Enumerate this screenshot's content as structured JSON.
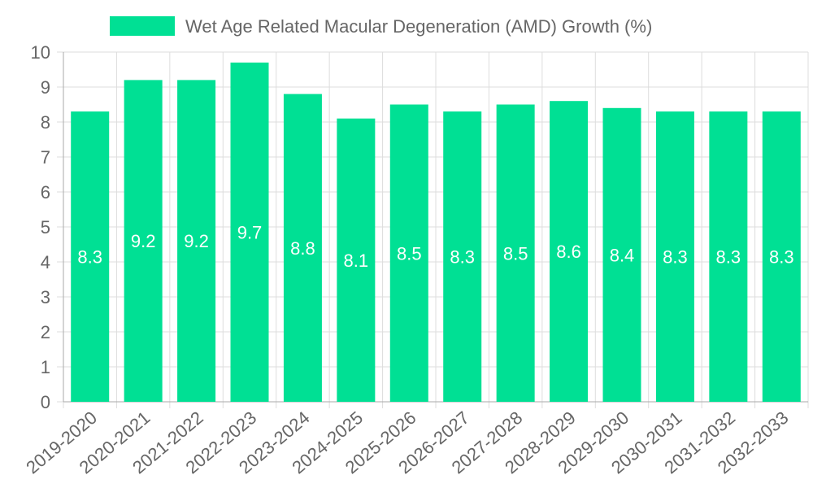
{
  "chart_data": {
    "type": "bar",
    "categories": [
      "2019-2020",
      "2020-2021",
      "2021-2022",
      "2022-2023",
      "2023-2024",
      "2024-2025",
      "2025-2026",
      "2026-2027",
      "2027-2028",
      "2028-2029",
      "2029-2030",
      "2030-2031",
      "2031-2032",
      "2032-2033"
    ],
    "series": [
      {
        "name": "Wet Age Related Macular Degeneration (AMD) Growth (%)",
        "values": [
          8.3,
          9.2,
          9.2,
          9.7,
          8.8,
          8.1,
          8.5,
          8.3,
          8.5,
          8.6,
          8.4,
          8.3,
          8.3,
          8.3
        ],
        "color": "#00e094"
      }
    ],
    "ylim": [
      0,
      10
    ],
    "yticks": [
      "0",
      "1",
      "2",
      "3",
      "4",
      "5",
      "6",
      "7",
      "8",
      "9",
      "10"
    ],
    "grid": true,
    "legend_position": "top-center",
    "data_labels": true
  }
}
